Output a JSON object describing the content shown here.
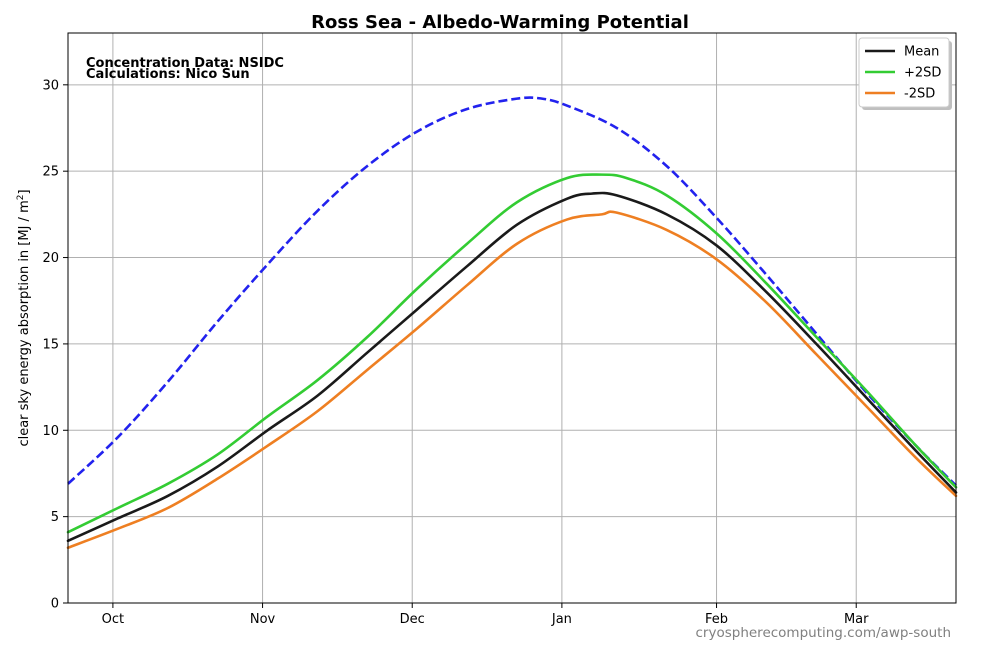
{
  "chart_data": {
    "type": "line",
    "title": "Ross Sea - Albedo-Warming Potential",
    "xlabel": "",
    "ylabel": "clear sky energy absorption in  [MJ / m²]",
    "ylabel_main": "clear sky energy absorption in  [MJ / m",
    "ylabel_sup": "2",
    "ylabel_end": "]",
    "xlim": [
      0,
      178
    ],
    "ylim": [
      0,
      33
    ],
    "x_unit": "days from Sep 22",
    "x_ticks": [
      {
        "label": "Oct",
        "value": 9
      },
      {
        "label": "Nov",
        "value": 39
      },
      {
        "label": "Dec",
        "value": 69
      },
      {
        "label": "Jan",
        "value": 99
      },
      {
        "label": "Feb",
        "value": 130
      },
      {
        "label": "Mar",
        "value": 158
      }
    ],
    "y_ticks": [
      0,
      5,
      10,
      15,
      20,
      25,
      30
    ],
    "grid": true,
    "legend_position": "top-right",
    "annotations": [
      "Concentration Data: NSIDC",
      "Calculations: Nico Sun"
    ],
    "series": [
      {
        "name": "Mean",
        "color": "#1a1a1a",
        "style": "solid",
        "points": [
          [
            0,
            3.6
          ],
          [
            10,
            4.9
          ],
          [
            20,
            6.2
          ],
          [
            30,
            7.9
          ],
          [
            40,
            10.0
          ],
          [
            50,
            12.0
          ],
          [
            60,
            14.5
          ],
          [
            70,
            17.0
          ],
          [
            80,
            19.5
          ],
          [
            90,
            21.9
          ],
          [
            100,
            23.4
          ],
          [
            105,
            23.7
          ],
          [
            110,
            23.6
          ],
          [
            120,
            22.5
          ],
          [
            130,
            20.7
          ],
          [
            140,
            18.0
          ],
          [
            150,
            15.0
          ],
          [
            160,
            11.9
          ],
          [
            170,
            8.8
          ],
          [
            178,
            6.4
          ]
        ]
      },
      {
        "name": "+2SD",
        "color": "#33cc33",
        "style": "solid",
        "points": [
          [
            0,
            4.1
          ],
          [
            10,
            5.5
          ],
          [
            20,
            6.9
          ],
          [
            30,
            8.6
          ],
          [
            40,
            10.8
          ],
          [
            50,
            12.9
          ],
          [
            60,
            15.4
          ],
          [
            70,
            18.2
          ],
          [
            80,
            20.8
          ],
          [
            90,
            23.2
          ],
          [
            100,
            24.6
          ],
          [
            107,
            24.8
          ],
          [
            112,
            24.6
          ],
          [
            120,
            23.6
          ],
          [
            130,
            21.4
          ],
          [
            140,
            18.5
          ],
          [
            150,
            15.4
          ],
          [
            160,
            12.3
          ],
          [
            170,
            9.1
          ],
          [
            178,
            6.7
          ]
        ]
      },
      {
        "name": "-2SD",
        "color": "#ee7f22",
        "style": "solid",
        "points": [
          [
            0,
            3.2
          ],
          [
            10,
            4.3
          ],
          [
            20,
            5.5
          ],
          [
            30,
            7.2
          ],
          [
            40,
            9.1
          ],
          [
            50,
            11.1
          ],
          [
            60,
            13.5
          ],
          [
            70,
            15.9
          ],
          [
            80,
            18.4
          ],
          [
            90,
            20.8
          ],
          [
            100,
            22.2
          ],
          [
            107,
            22.5
          ],
          [
            110,
            22.6
          ],
          [
            120,
            21.6
          ],
          [
            130,
            19.9
          ],
          [
            140,
            17.4
          ],
          [
            150,
            14.4
          ],
          [
            160,
            11.4
          ],
          [
            170,
            8.4
          ],
          [
            178,
            6.2
          ]
        ]
      },
      {
        "name": "",
        "color": "#2222ee",
        "style": "dashed",
        "points": [
          [
            0,
            6.9
          ],
          [
            10,
            9.6
          ],
          [
            20,
            12.8
          ],
          [
            30,
            16.3
          ],
          [
            40,
            19.6
          ],
          [
            50,
            22.7
          ],
          [
            60,
            25.3
          ],
          [
            70,
            27.3
          ],
          [
            80,
            28.6
          ],
          [
            90,
            29.2
          ],
          [
            95,
            29.2
          ],
          [
            100,
            28.8
          ],
          [
            110,
            27.5
          ],
          [
            120,
            25.3
          ],
          [
            130,
            22.3
          ],
          [
            140,
            19.0
          ],
          [
            150,
            15.6
          ],
          [
            160,
            12.2
          ],
          [
            170,
            9.1
          ],
          [
            178,
            6.8
          ]
        ]
      }
    ]
  },
  "watermark": "cryospherecomputing.com/awp-south"
}
